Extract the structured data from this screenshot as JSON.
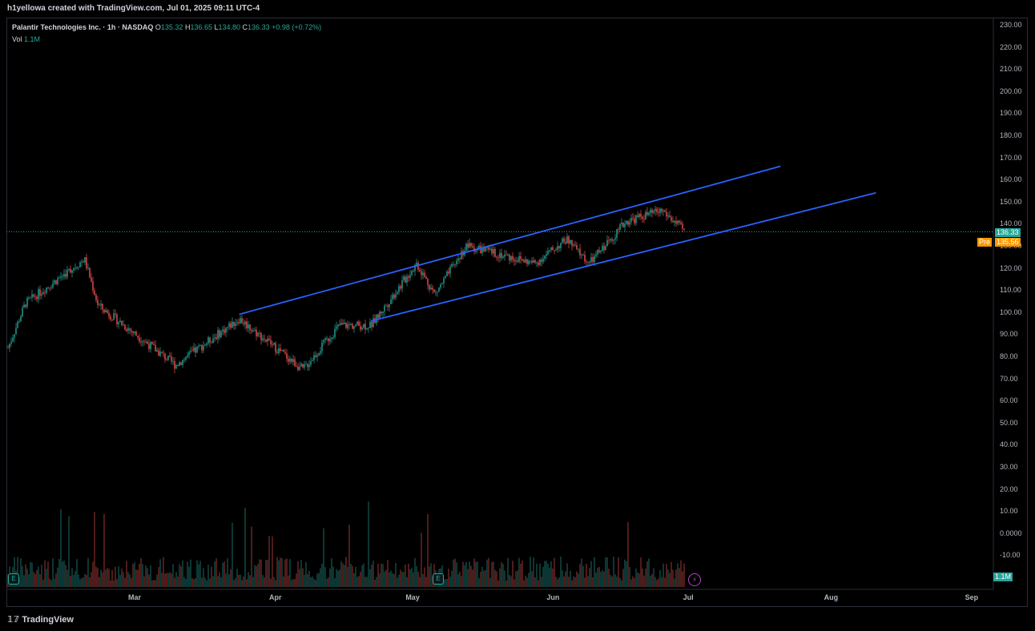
{
  "header": {
    "title": "h1yellowa created with TradingView.com, Jul 01, 2025 09:11 UTC-4"
  },
  "legend": {
    "symbol": "Palantir Technologies Inc. · 1h · NASDAQ",
    "open_label": "O",
    "open": "135.32",
    "high_label": "H",
    "high": "136.65",
    "low_label": "L",
    "low": "134.80",
    "close_label": "C",
    "close": "136.33",
    "change": "+0.98 (+0.72%)",
    "vol_label": "Vol",
    "vol": "1.1M"
  },
  "price_axis": [
    "230.00",
    "220.00",
    "210.00",
    "200.00",
    "190.00",
    "180.00",
    "170.00",
    "160.00",
    "150.00",
    "140.00",
    "130.00",
    "120.00",
    "110.00",
    "100.00",
    "90.00",
    "80.00",
    "70.00",
    "60.00",
    "50.00",
    "40.00",
    "30.00",
    "20.00",
    "10.00",
    "0.0000",
    "-10.00"
  ],
  "time_axis": [
    "Mar",
    "Apr",
    "May",
    "Jun",
    "Jul",
    "Aug",
    "Sep"
  ],
  "price_tags": {
    "last": "136.33",
    "pre_label": "Pre",
    "pre": "135.56",
    "volume": "1.1M"
  },
  "footer": {
    "brand": "TradingView"
  },
  "colors": {
    "up": "#26a69a",
    "down": "#ef5350",
    "channel": "#2962ff",
    "pre": "#ff9800",
    "bg": "#000000"
  },
  "chart_data": {
    "type": "line",
    "key_prices": [
      {
        "date": "2025-02-01",
        "close": 83
      },
      {
        "date": "2025-02-05",
        "close": 104
      },
      {
        "date": "2025-02-18",
        "close": 124
      },
      {
        "date": "2025-02-21",
        "close": 103
      },
      {
        "date": "2025-03-10",
        "close": 76
      },
      {
        "date": "2025-03-24",
        "close": 97
      },
      {
        "date": "2025-04-07",
        "close": 74
      },
      {
        "date": "2025-04-15",
        "close": 94
      },
      {
        "date": "2025-04-22",
        "close": 94
      },
      {
        "date": "2025-05-02",
        "close": 122
      },
      {
        "date": "2025-05-06",
        "close": 108
      },
      {
        "date": "2025-05-13",
        "close": 130
      },
      {
        "date": "2025-05-28",
        "close": 122
      },
      {
        "date": "2025-06-04",
        "close": 133
      },
      {
        "date": "2025-06-09",
        "close": 122
      },
      {
        "date": "2025-06-17",
        "close": 141
      },
      {
        "date": "2025-06-25",
        "close": 146
      },
      {
        "date": "2025-06-30",
        "close": 136.33
      }
    ],
    "channel": {
      "upper": [
        {
          "date": "2025-03-24",
          "price": 99
        },
        {
          "date": "2025-07-21",
          "price": 166
        }
      ],
      "lower": [
        {
          "date": "2025-04-22",
          "price": 96
        },
        {
          "date": "2025-08-11",
          "price": 154
        }
      ]
    },
    "ylim": [
      -15,
      232
    ]
  }
}
